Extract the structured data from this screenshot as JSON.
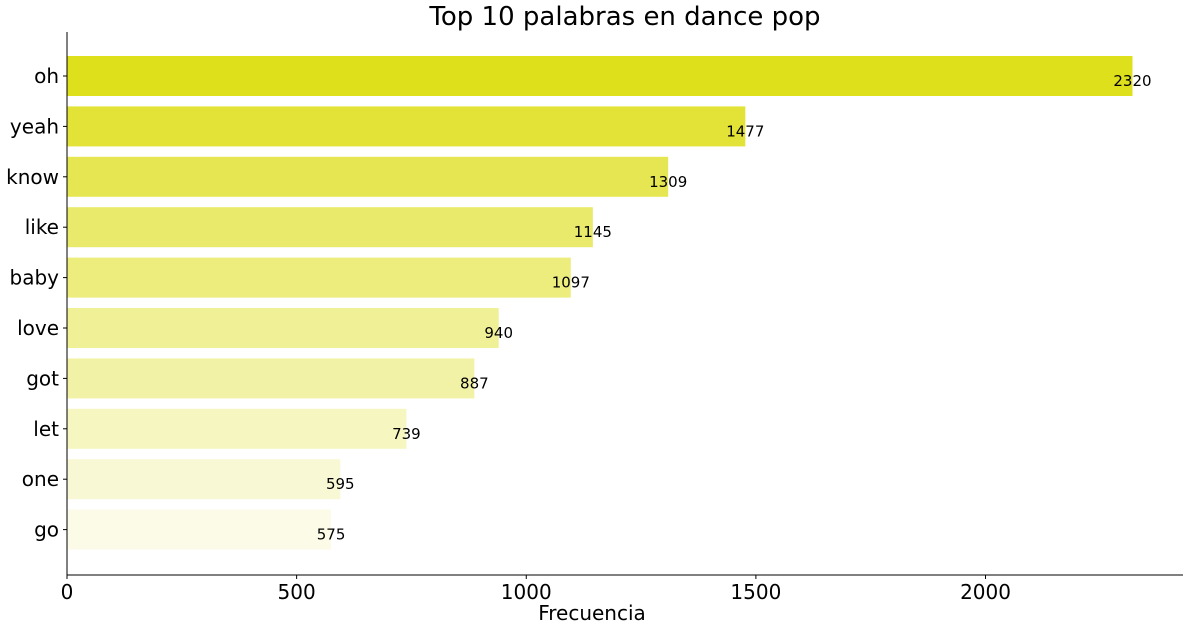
{
  "chart_data": {
    "type": "bar",
    "orientation": "horizontal",
    "title": "Top 10 palabras en dance pop",
    "xlabel": "Frecuencia",
    "ylabel": "",
    "categories": [
      "oh",
      "yeah",
      "know",
      "like",
      "baby",
      "love",
      "got",
      "let",
      "one",
      "go"
    ],
    "values": [
      2320,
      1477,
      1309,
      1145,
      1097,
      940,
      887,
      739,
      595,
      575
    ],
    "xlim": [
      0,
      2430
    ],
    "xticks": [
      0,
      500,
      1000,
      1500,
      2000
    ],
    "colors": [
      "#dfe01c",
      "#e2e237",
      "#e6e653",
      "#e9e96c",
      "#eced7d",
      "#f0f097",
      "#f2f2a6",
      "#f6f6c1",
      "#f8f8d4",
      "#fbfbe8"
    ],
    "grid": false,
    "legend": "none"
  }
}
